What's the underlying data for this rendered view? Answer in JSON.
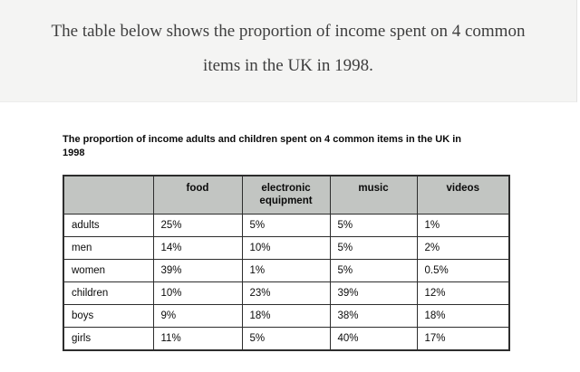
{
  "header": {
    "prompt_line1": "The table below shows the proportion of income spent on 4 common",
    "prompt_line2": "items in the UK in 1998."
  },
  "table": {
    "title_line1": "The proportion of income adults and children spent on 4 common items in the UK in",
    "title_line2": "1998",
    "columns": [
      "",
      "food",
      "electronic equipment",
      "music",
      "videos"
    ],
    "rows": [
      {
        "label": "adults",
        "values": [
          "25%",
          "5%",
          "5%",
          "1%"
        ]
      },
      {
        "label": "men",
        "values": [
          "14%",
          "10%",
          "5%",
          "2%"
        ]
      },
      {
        "label": "women",
        "values": [
          "39%",
          "1%",
          "5%",
          "0.5%"
        ]
      },
      {
        "label": "children",
        "values": [
          "10%",
          "23%",
          "39%",
          "12%"
        ]
      },
      {
        "label": "boys",
        "values": [
          "9%",
          "18%",
          "38%",
          "18%"
        ]
      },
      {
        "label": "girls",
        "values": [
          "11%",
          "5%",
          "40%",
          "17%"
        ]
      }
    ]
  },
  "colors": {
    "page_background": "#ffffff",
    "header_band_background": "#f4f4f3",
    "table_header_background": "#c2c5c2",
    "table_border": "#2d2d2d",
    "body_text": "#0b0b0b",
    "prompt_text": "#3e3e3e"
  },
  "chart_data": {
    "type": "table",
    "title": "The proportion of income adults and children spent on 4 common items in the UK in 1998",
    "prompt": "The table below shows the proportion of income spent on 4 common items in the UK in 1998.",
    "columns": [
      "",
      "food",
      "electronic equipment",
      "music",
      "videos"
    ],
    "rows": [
      [
        "adults",
        "25%",
        "5%",
        "5%",
        "1%"
      ],
      [
        "men",
        "14%",
        "10%",
        "5%",
        "2%"
      ],
      [
        "women",
        "39%",
        "1%",
        "5%",
        "0.5%"
      ],
      [
        "children",
        "10%",
        "23%",
        "39%",
        "12%"
      ],
      [
        "boys",
        "9%",
        "18%",
        "38%",
        "18%"
      ],
      [
        "girls",
        "11%",
        "5%",
        "40%",
        "17%"
      ]
    ],
    "units": "percent of income",
    "year": "1998",
    "region": "UK"
  }
}
